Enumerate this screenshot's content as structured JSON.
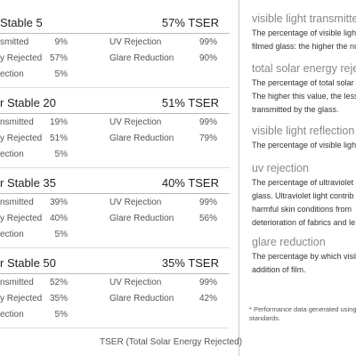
{
  "specs": {
    "products": [
      {
        "name": "Stable 5",
        "tser": "57% TSER",
        "left": [
          [
            "smitted",
            "9%"
          ],
          [
            "y Rejected",
            "57%"
          ],
          [
            "ection",
            "5%"
          ]
        ],
        "right": [
          [
            "UV Rejection",
            "99%"
          ],
          [
            "Glare Reduction",
            "90%"
          ]
        ]
      },
      {
        "name": "r Stable 20",
        "tser": "51% TSER",
        "left": [
          [
            "nsmitted",
            "19%"
          ],
          [
            "y Rejected",
            "51%"
          ],
          [
            "ection",
            "5%"
          ]
        ],
        "right": [
          [
            "UV Rejection",
            "99%"
          ],
          [
            "Glare Reduction",
            "79%"
          ]
        ]
      },
      {
        "name": "r Stable 35",
        "tser": "40% TSER",
        "left": [
          [
            "nsmitted",
            "39%"
          ],
          [
            "y Rejected",
            "40%"
          ],
          [
            "ection",
            "5%"
          ]
        ],
        "right": [
          [
            "UV Rejection",
            "99%"
          ],
          [
            "Glare Reduction",
            "56%"
          ]
        ]
      },
      {
        "name": "r Stable 50",
        "tser": "35% TSER",
        "left": [
          [
            "nsmitted",
            "52%"
          ],
          [
            "y Rejected",
            "35%"
          ],
          [
            "ection",
            "5%"
          ]
        ],
        "right": [
          [
            "UV Rejection",
            "99%"
          ],
          [
            "Glare Reduction",
            "42%"
          ]
        ]
      }
    ],
    "footer": "TSER (Total Solar Energy Rejected)"
  },
  "glossary": {
    "entries": [
      {
        "heading": "visible light transmitte",
        "body": [
          "The percentage of visible ligh",
          "filmed glass: the higher the nu"
        ]
      },
      {
        "heading": "total solar energy rejec",
        "body": [
          "The percentage of total solar e",
          "The higher this value, the less",
          "transmitted by the glass."
        ]
      },
      {
        "heading": "visible light reflection",
        "body": [
          "The percentage of visible light"
        ]
      },
      {
        "heading": "uv rejection",
        "body": [
          "The percentage of ultraviolet l",
          "glass. Ultraviolet light contrib",
          "harmful skin conditions from",
          "deterioration of fabrics and le"
        ]
      },
      {
        "heading": "glare reduction",
        "body": [
          "The percentage by which visibl",
          "addition of film."
        ]
      }
    ],
    "footnote": [
      "* Performance data generated using",
      "standards."
    ]
  }
}
